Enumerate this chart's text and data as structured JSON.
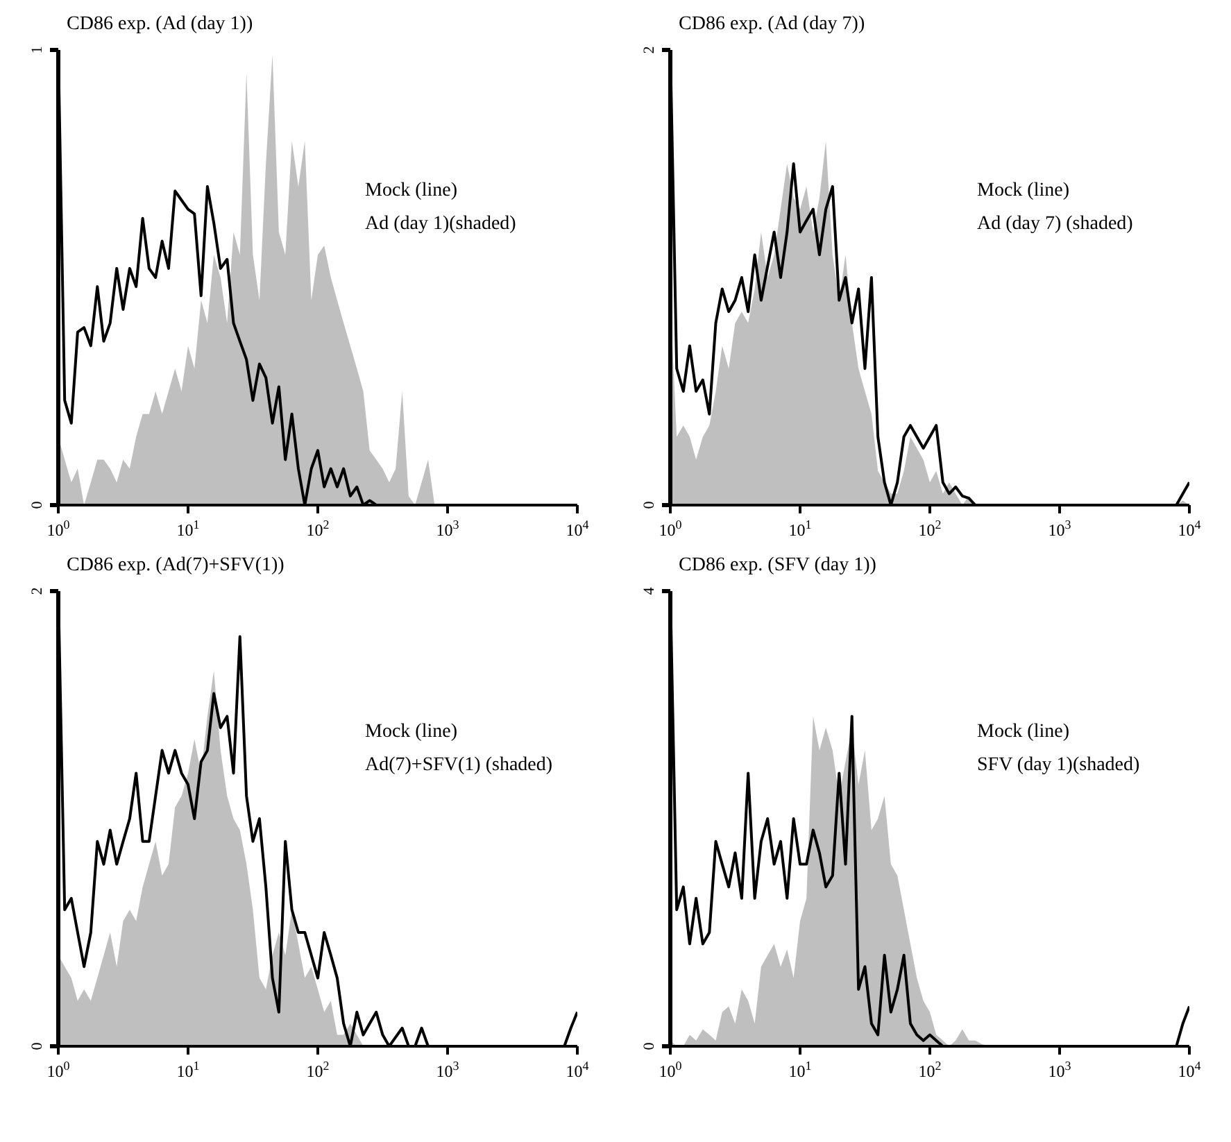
{
  "chart_data": [
    {
      "type": "area",
      "title": "CD86 exp. (Ad (day 1))",
      "annotations": [
        "Mock (line)",
        "Ad (day 1)(shaded)"
      ],
      "log": "x",
      "legend": false,
      "grid": false,
      "marker": "none",
      "line_style": "solid",
      "x": [
        1,
        1.12,
        1.26,
        1.41,
        1.58,
        1.78,
        2,
        2.24,
        2.51,
        2.82,
        3.16,
        3.55,
        3.98,
        4.47,
        5.01,
        5.62,
        6.31,
        7.08,
        7.94,
        8.91,
        10,
        11.2,
        12.6,
        14.1,
        15.8,
        17.8,
        20,
        22.4,
        25.1,
        28.2,
        31.6,
        35.5,
        39.8,
        44.7,
        50.1,
        56.2,
        63.1,
        70.8,
        79.4,
        89.1,
        100,
        112,
        126,
        141,
        158,
        178,
        200,
        224,
        251,
        282,
        316,
        355,
        398,
        447,
        501,
        562,
        631,
        708,
        794,
        891,
        1000,
        1120,
        1260,
        1410,
        1580,
        1780,
        2000,
        2240,
        2510,
        2820,
        3160,
        3550,
        3980,
        4470,
        5010,
        5620,
        6310,
        7080,
        7940,
        8910,
        10000
      ],
      "xlim": [
        1,
        10000
      ],
      "xticks": [
        {
          "value": 1,
          "label": "10$^{0}$"
        },
        {
          "value": 10,
          "label": "10$^{1}$"
        },
        {
          "value": 100,
          "label": "10$^{2}$"
        },
        {
          "value": 1000,
          "label": "10$^{3}$"
        },
        {
          "value": 10000,
          "label": "10$^{4}$"
        }
      ],
      "ylim": [
        0,
        1
      ],
      "yticks": [
        0,
        1
      ],
      "series": [
        {
          "type": "area",
          "color": "#b4b4b4",
          "values": [
            0.15,
            0.1,
            0.05,
            0.08,
            0,
            0.05,
            0.1,
            0.1,
            0.08,
            0.05,
            0.1,
            0.08,
            0.15,
            0.2,
            0.2,
            0.25,
            0.2,
            0.25,
            0.3,
            0.25,
            0.35,
            0.3,
            0.45,
            0.4,
            0.55,
            0.5,
            0.4,
            0.6,
            0.55,
            0.95,
            0.55,
            0.45,
            0.75,
            0.99,
            0.6,
            0.55,
            0.8,
            0.7,
            0.8,
            0.45,
            0.55,
            0.57,
            0.5,
            0.45,
            0.4,
            0.35,
            0.3,
            0.25,
            0.12,
            0.1,
            0.08,
            0.05,
            0.08,
            0.25,
            0.02,
            0,
            0.05,
            0.1,
            0,
            0,
            0,
            0,
            0,
            0,
            0,
            0,
            0,
            0,
            0,
            0,
            0,
            0,
            0,
            0,
            0,
            0,
            0,
            0,
            0,
            0,
            0
          ]
        },
        {
          "type": "line",
          "color": "#000000",
          "values": [
            1.0,
            0.23,
            0.18,
            0.38,
            0.39,
            0.35,
            0.48,
            0.36,
            0.4,
            0.52,
            0.43,
            0.52,
            0.48,
            0.63,
            0.52,
            0.5,
            0.58,
            0.52,
            0.69,
            0.67,
            0.65,
            0.64,
            0.46,
            0.7,
            0.62,
            0.52,
            0.54,
            0.4,
            0.36,
            0.32,
            0.23,
            0.31,
            0.28,
            0.18,
            0.26,
            0.1,
            0.2,
            0.08,
            0,
            0.08,
            0.12,
            0.04,
            0.08,
            0.04,
            0.08,
            0.02,
            0.04,
            0,
            0.01,
            0,
            0,
            0,
            0,
            0,
            0,
            0,
            0,
            0,
            0,
            0,
            0,
            0,
            0,
            0,
            0,
            0,
            0,
            0,
            0,
            0,
            0,
            0,
            0,
            0,
            0,
            0,
            0,
            0,
            0,
            0,
            0
          ]
        }
      ]
    },
    {
      "type": "area",
      "title": "CD86 exp. (Ad (day 7))",
      "annotations": [
        "Mock (line)",
        "Ad (day 7) (shaded)"
      ],
      "log": "x",
      "legend": false,
      "grid": false,
      "marker": "none",
      "line_style": "solid",
      "x": [
        1,
        1.12,
        1.26,
        1.41,
        1.58,
        1.78,
        2,
        2.24,
        2.51,
        2.82,
        3.16,
        3.55,
        3.98,
        4.47,
        5.01,
        5.62,
        6.31,
        7.08,
        7.94,
        8.91,
        10,
        11.2,
        12.6,
        14.1,
        15.8,
        17.8,
        20,
        22.4,
        25.1,
        28.2,
        31.6,
        35.5,
        39.8,
        44.7,
        50.1,
        56.2,
        63.1,
        70.8,
        79.4,
        89.1,
        100,
        112,
        126,
        141,
        158,
        178,
        200,
        224,
        251,
        282,
        316,
        355,
        398,
        447,
        501,
        562,
        631,
        708,
        794,
        891,
        1000,
        1120,
        1260,
        1410,
        1580,
        1780,
        2000,
        2240,
        2510,
        2820,
        3160,
        3550,
        3980,
        4470,
        5010,
        5620,
        6310,
        7080,
        7940,
        8910,
        10000
      ],
      "xlim": [
        1,
        10000
      ],
      "xticks": [
        {
          "value": 1,
          "label": "10$^{0}$"
        },
        {
          "value": 10,
          "label": "10$^{1}$"
        },
        {
          "value": 100,
          "label": "10$^{2}$"
        },
        {
          "value": 1000,
          "label": "10$^{3}$"
        },
        {
          "value": 10000,
          "label": "10$^{4}$"
        }
      ],
      "ylim": [
        0,
        2
      ],
      "yticks": [
        0,
        2
      ],
      "series": [
        {
          "type": "area",
          "color": "#b4b4b4",
          "values": [
            0.9,
            0.3,
            0.35,
            0.3,
            0.2,
            0.3,
            0.35,
            0.5,
            0.7,
            0.6,
            0.8,
            0.85,
            0.8,
            0.95,
            1.2,
            1.0,
            1.1,
            1.3,
            1.5,
            1.35,
            1.3,
            1.4,
            1.2,
            1.35,
            1.6,
            1.1,
            0.9,
            1.1,
            0.8,
            0.6,
            0.5,
            0.4,
            0.15,
            0.1,
            0.05,
            0.05,
            0.15,
            0.3,
            0.25,
            0.2,
            0.1,
            0.15,
            0.05,
            0.1,
            0.05,
            0,
            0.04,
            0,
            0,
            0,
            0,
            0,
            0,
            0,
            0,
            0,
            0,
            0,
            0,
            0,
            0,
            0,
            0,
            0,
            0,
            0,
            0,
            0,
            0,
            0,
            0,
            0,
            0,
            0,
            0,
            0,
            0,
            0,
            0,
            0.02,
            0
          ]
        },
        {
          "type": "line",
          "color": "#000000",
          "values": [
            2.0,
            0.6,
            0.5,
            0.7,
            0.5,
            0.55,
            0.4,
            0.8,
            0.95,
            0.85,
            0.9,
            1.0,
            0.85,
            1.1,
            0.9,
            1.05,
            1.2,
            1.0,
            1.2,
            1.5,
            1.2,
            1.25,
            1.3,
            1.1,
            1.3,
            1.4,
            0.9,
            1.0,
            0.8,
            0.95,
            0.6,
            1.0,
            0.3,
            0.1,
            0,
            0.1,
            0.3,
            0.35,
            0.3,
            0.25,
            0.3,
            0.35,
            0.1,
            0.05,
            0.08,
            0.04,
            0.03,
            0,
            0,
            0,
            0,
            0,
            0,
            0,
            0,
            0,
            0,
            0,
            0,
            0,
            0,
            0,
            0,
            0,
            0,
            0,
            0,
            0,
            0,
            0,
            0,
            0,
            0,
            0,
            0,
            0,
            0,
            0,
            0,
            0.05,
            0.1
          ]
        }
      ]
    },
    {
      "type": "area",
      "title": "CD86 exp. (Ad(7)+SFV(1))",
      "annotations": [
        "Mock (line)",
        "Ad(7)+SFV(1) (shaded)"
      ],
      "log": "x",
      "legend": false,
      "grid": false,
      "marker": "none",
      "line_style": "solid",
      "x": [
        1,
        1.12,
        1.26,
        1.41,
        1.58,
        1.78,
        2,
        2.24,
        2.51,
        2.82,
        3.16,
        3.55,
        3.98,
        4.47,
        5.01,
        5.62,
        6.31,
        7.08,
        7.94,
        8.91,
        10,
        11.2,
        12.6,
        14.1,
        15.8,
        17.8,
        20,
        22.4,
        25.1,
        28.2,
        31.6,
        35.5,
        39.8,
        44.7,
        50.1,
        56.2,
        63.1,
        70.8,
        79.4,
        89.1,
        100,
        112,
        126,
        141,
        158,
        178,
        200,
        224,
        251,
        282,
        316,
        355,
        398,
        447,
        501,
        562,
        631,
        708,
        794,
        891,
        1000,
        1120,
        1260,
        1410,
        1580,
        1780,
        2000,
        2240,
        2510,
        2820,
        3160,
        3550,
        3980,
        4470,
        5010,
        5620,
        6310,
        7080,
        7940,
        8910,
        10000
      ],
      "xlim": [
        1,
        10000
      ],
      "xticks": [
        {
          "value": 1,
          "label": "10$^{0}$"
        },
        {
          "value": 10,
          "label": "10$^{1}$"
        },
        {
          "value": 100,
          "label": "10$^{2}$"
        },
        {
          "value": 1000,
          "label": "10$^{3}$"
        },
        {
          "value": 10000,
          "label": "10$^{4}$"
        }
      ],
      "ylim": [
        0,
        2
      ],
      "yticks": [
        0,
        2
      ],
      "series": [
        {
          "type": "area",
          "color": "#b4b4b4",
          "values": [
            0.4,
            0.35,
            0.3,
            0.2,
            0.25,
            0.2,
            0.3,
            0.4,
            0.5,
            0.35,
            0.55,
            0.6,
            0.55,
            0.7,
            0.8,
            0.9,
            0.75,
            0.8,
            1.05,
            1.1,
            1.2,
            1.35,
            1.2,
            1.45,
            1.65,
            1.3,
            1.1,
            1.0,
            0.95,
            0.8,
            0.6,
            0.3,
            0.25,
            0.4,
            0.5,
            0.4,
            0.6,
            0.45,
            0.3,
            0.35,
            0.25,
            0.15,
            0.2,
            0.05,
            0.05,
            0.1,
            0.05,
            0,
            0,
            0,
            0,
            0,
            0,
            0,
            0,
            0,
            0,
            0,
            0,
            0,
            0,
            0,
            0,
            0,
            0,
            0,
            0,
            0,
            0,
            0,
            0,
            0,
            0,
            0,
            0,
            0,
            0,
            0,
            0,
            0,
            0
          ]
        },
        {
          "type": "line",
          "color": "#000000",
          "values": [
            2.0,
            0.6,
            0.65,
            0.5,
            0.35,
            0.5,
            0.9,
            0.8,
            0.95,
            0.8,
            0.9,
            1.0,
            1.2,
            0.9,
            0.9,
            1.1,
            1.3,
            1.2,
            1.3,
            1.2,
            1.15,
            1.0,
            1.25,
            1.3,
            1.55,
            1.4,
            1.45,
            1.2,
            1.8,
            1.1,
            0.9,
            1.0,
            0.7,
            0.3,
            0.15,
            0.9,
            0.6,
            0.5,
            0.5,
            0.4,
            0.3,
            0.5,
            0.4,
            0.3,
            0.1,
            0,
            0.15,
            0.05,
            0.1,
            0.15,
            0.05,
            0,
            0.04,
            0.08,
            0,
            0,
            0.08,
            0,
            0,
            0,
            0,
            0,
            0,
            0,
            0,
            0,
            0,
            0,
            0,
            0,
            0,
            0,
            0,
            0,
            0,
            0,
            0,
            0,
            0,
            0.08,
            0.15
          ]
        }
      ]
    },
    {
      "type": "area",
      "title": "CD86 exp. (SFV (day 1))",
      "annotations": [
        "Mock (line)",
        "SFV (day 1)(shaded)"
      ],
      "log": "x",
      "legend": false,
      "grid": false,
      "marker": "none",
      "line_style": "solid",
      "x": [
        1,
        1.12,
        1.26,
        1.41,
        1.58,
        1.78,
        2,
        2.24,
        2.51,
        2.82,
        3.16,
        3.55,
        3.98,
        4.47,
        5.01,
        5.62,
        6.31,
        7.08,
        7.94,
        8.91,
        10,
        11.2,
        12.6,
        14.1,
        15.8,
        17.8,
        20,
        22.4,
        25.1,
        28.2,
        31.6,
        35.5,
        39.8,
        44.7,
        50.1,
        56.2,
        63.1,
        70.8,
        79.4,
        89.1,
        100,
        112,
        126,
        141,
        158,
        178,
        200,
        224,
        251,
        282,
        316,
        355,
        398,
        447,
        501,
        562,
        631,
        708,
        794,
        891,
        1000,
        1120,
        1260,
        1410,
        1580,
        1780,
        2000,
        2240,
        2510,
        2820,
        3160,
        3550,
        3980,
        4470,
        5010,
        5620,
        6310,
        7080,
        7940,
        8910,
        10000
      ],
      "xlim": [
        1,
        10000
      ],
      "xticks": [
        {
          "value": 1,
          "label": "10$^{0}$"
        },
        {
          "value": 10,
          "label": "10$^{1}$"
        },
        {
          "value": 100,
          "label": "10$^{2}$"
        },
        {
          "value": 1000,
          "label": "10$^{3}$"
        },
        {
          "value": 10000,
          "label": "10$^{4}$"
        }
      ],
      "ylim": [
        0,
        4
      ],
      "yticks": [
        0,
        4
      ],
      "series": [
        {
          "type": "area",
          "color": "#b4b4b4",
          "values": [
            0.05,
            0,
            0,
            0.1,
            0.05,
            0.15,
            0.1,
            0.05,
            0.3,
            0.35,
            0.2,
            0.5,
            0.4,
            0.2,
            0.7,
            0.8,
            0.9,
            0.7,
            0.85,
            0.6,
            1.1,
            1.3,
            2.9,
            2.6,
            2.8,
            2.6,
            2.2,
            2.5,
            2.8,
            2.3,
            2.6,
            1.9,
            2.0,
            2.2,
            1.6,
            1.5,
            1.2,
            0.9,
            0.6,
            0.4,
            0.3,
            0.1,
            0.05,
            0,
            0.05,
            0.15,
            0.05,
            0.05,
            0.02,
            0,
            0,
            0,
            0,
            0,
            0,
            0,
            0,
            0,
            0,
            0,
            0,
            0,
            0,
            0,
            0,
            0,
            0,
            0,
            0,
            0,
            0,
            0,
            0,
            0,
            0,
            0,
            0,
            0,
            0,
            0,
            0
          ]
        },
        {
          "type": "line",
          "color": "#000000",
          "values": [
            4.0,
            1.2,
            1.4,
            0.9,
            1.3,
            0.9,
            1.0,
            1.8,
            1.6,
            1.4,
            1.7,
            1.3,
            2.4,
            1.3,
            1.8,
            2.0,
            1.6,
            1.8,
            1.3,
            2.0,
            1.6,
            1.6,
            1.9,
            1.7,
            1.4,
            1.5,
            2.4,
            1.6,
            2.9,
            0.5,
            0.7,
            0.2,
            0.1,
            0.8,
            0.3,
            0.5,
            0.8,
            0.2,
            0.1,
            0.05,
            0.1,
            0.05,
            0,
            0,
            0,
            0,
            0,
            0,
            0,
            0,
            0,
            0,
            0,
            0,
            0,
            0,
            0,
            0,
            0,
            0,
            0,
            0,
            0,
            0,
            0,
            0,
            0,
            0,
            0,
            0,
            0,
            0,
            0,
            0,
            0,
            0,
            0,
            0,
            0,
            0.2,
            0.35
          ]
        }
      ]
    }
  ]
}
